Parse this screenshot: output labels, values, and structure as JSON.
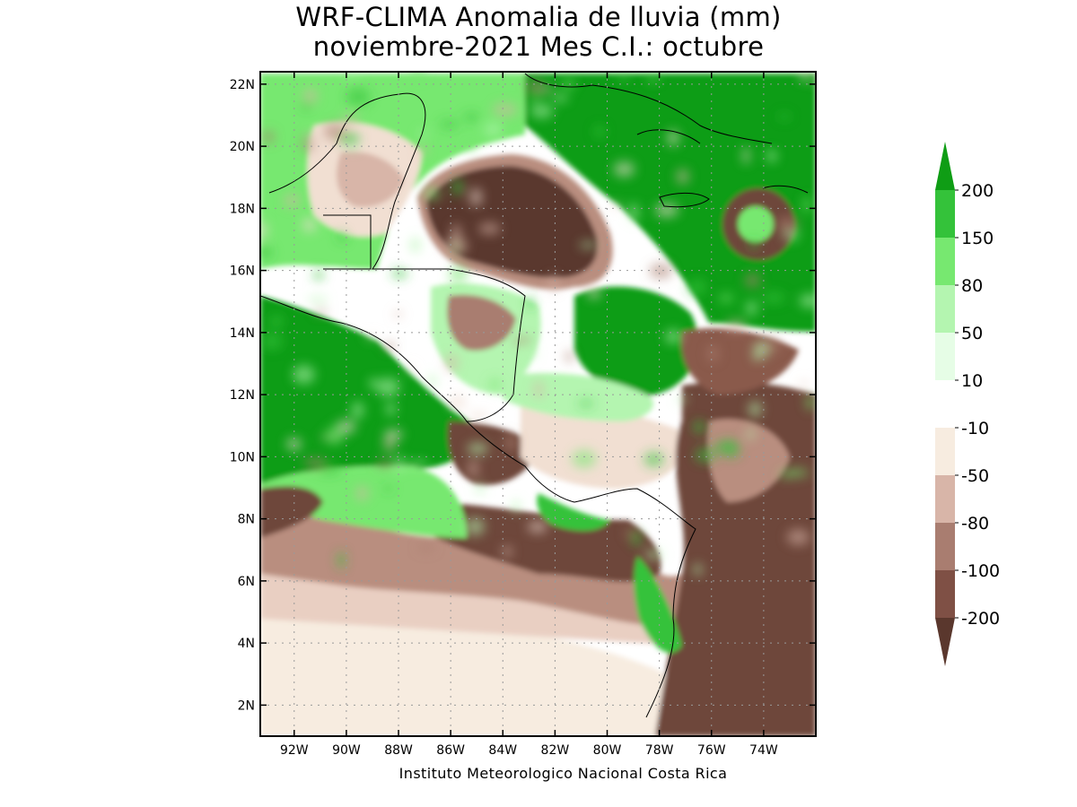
{
  "title": {
    "line1": "WRF-CLIMA Anomalia de lluvia (mm)",
    "line2": "noviembre-2021 Mes C.I.: octubre"
  },
  "footer": "Instituto Meteorologico Nacional Costa Rica",
  "map": {
    "y_axis_labels": [
      "22N",
      "20N",
      "18N",
      "16N",
      "14N",
      "12N",
      "10N",
      "8N",
      "6N",
      "4N",
      "2N"
    ],
    "x_axis_labels": [
      "92W",
      "90W",
      "88W",
      "86W",
      "84W",
      "82W",
      "80W",
      "78W",
      "76W",
      "74W"
    ],
    "lat_range": [
      1,
      22.4
    ],
    "lon_range": [
      -93.3,
      -72.0
    ]
  },
  "colorbar": {
    "labels": [
      "200",
      "150",
      "80",
      "50",
      "10",
      "-10",
      "-50",
      "-80",
      "-100",
      "-200"
    ],
    "colors": [
      "#0f9d15",
      "#34c23a",
      "#77e870",
      "#b4f5b0",
      "#e6fde6",
      "#ffffff",
      "#f7ece0",
      "#d8b5a8",
      "#a97d70",
      "#7f5045",
      "#5a372d"
    ]
  },
  "chart_data": {
    "type": "heatmap",
    "title": "WRF-CLIMA Anomalia de lluvia (mm)",
    "subtitle": "noviembre-2021 Mes C.I.: octubre",
    "xlabel": "",
    "ylabel": "",
    "x_ticks": [
      "92W",
      "90W",
      "88W",
      "86W",
      "84W",
      "82W",
      "80W",
      "78W",
      "76W",
      "74W"
    ],
    "y_ticks": [
      "22N",
      "20N",
      "18N",
      "16N",
      "14N",
      "12N",
      "10N",
      "8N",
      "6N",
      "4N",
      "2N"
    ],
    "levels": [
      -200,
      -100,
      -80,
      -50,
      -10,
      10,
      50,
      80,
      150,
      200
    ],
    "grid": true,
    "legend": "right colorbar",
    "regions": [
      {
        "name": "Caribbean north of Honduras",
        "anomaly": -150
      },
      {
        "name": "Caribbean northeast (Cuba/Jamaica)",
        "anomaly": 200
      },
      {
        "name": "Caribbean central (east of Nicaragua)",
        "anomaly": 200
      },
      {
        "name": "Pacific west of Central America",
        "anomaly": 200
      },
      {
        "name": "Colombia / northwest South America",
        "anomaly": -150
      },
      {
        "name": "Pacific south of Panama",
        "anomaly": -100
      },
      {
        "name": "Equatorial Pacific (south)",
        "anomaly": 0
      }
    ]
  }
}
